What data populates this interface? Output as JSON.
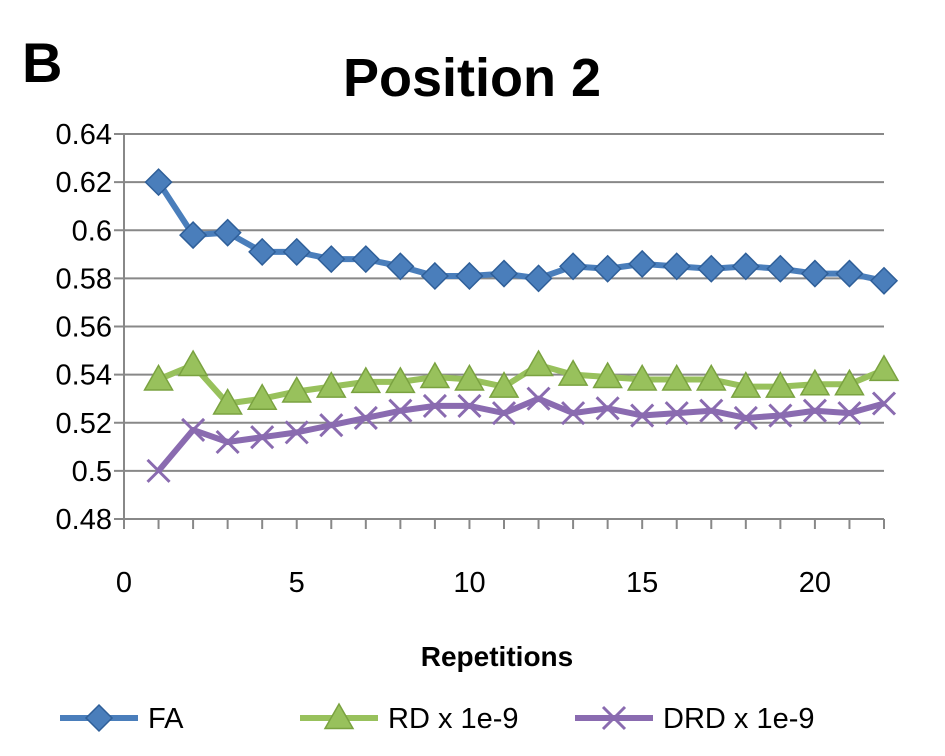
{
  "panel_label": "B",
  "chart_data": {
    "type": "line",
    "title": "Position 2",
    "xlabel": "Repetitions",
    "ylabel": "",
    "xlim": [
      0,
      22
    ],
    "ylim": [
      0.48,
      0.64
    ],
    "xticks": [
      0,
      5,
      10,
      15,
      20
    ],
    "xtick_labels": [
      "0",
      "5",
      "10",
      "15",
      "20"
    ],
    "yticks": [
      0.48,
      0.5,
      0.52,
      0.54,
      0.56,
      0.58,
      0.6,
      0.62,
      0.64
    ],
    "ytick_labels": [
      "0.48",
      "0.5",
      "0.52",
      "0.54",
      "0.56",
      "0.58",
      "0.6",
      "0.62",
      "0.64"
    ],
    "grid": "horizontal",
    "legend_position": "bottom",
    "x": [
      1,
      2,
      3,
      4,
      5,
      6,
      7,
      8,
      9,
      10,
      11,
      12,
      13,
      14,
      15,
      16,
      17,
      18,
      19,
      20,
      21,
      22
    ],
    "series": [
      {
        "name": "FA",
        "marker": "diamond",
        "color": "#4a7ebb",
        "values": [
          0.62,
          0.598,
          0.599,
          0.591,
          0.591,
          0.588,
          0.588,
          0.585,
          0.581,
          0.581,
          0.582,
          0.58,
          0.585,
          0.584,
          0.586,
          0.585,
          0.584,
          0.585,
          0.584,
          0.582,
          0.582,
          0.579
        ]
      },
      {
        "name": "RD x 1e-9",
        "marker": "triangle",
        "color": "#98c15c",
        "values": [
          0.538,
          0.544,
          0.528,
          0.53,
          0.533,
          0.535,
          0.537,
          0.537,
          0.539,
          0.538,
          0.535,
          0.544,
          0.54,
          0.539,
          0.538,
          0.538,
          0.538,
          0.535,
          0.535,
          0.536,
          0.536,
          0.542
        ]
      },
      {
        "name": "DRD x 1e-9",
        "marker": "x",
        "color": "#8a6bb0",
        "values": [
          0.5,
          0.517,
          0.512,
          0.514,
          0.516,
          0.519,
          0.522,
          0.525,
          0.527,
          0.527,
          0.524,
          0.53,
          0.524,
          0.526,
          0.523,
          0.524,
          0.525,
          0.522,
          0.523,
          0.525,
          0.524,
          0.528
        ]
      }
    ]
  }
}
